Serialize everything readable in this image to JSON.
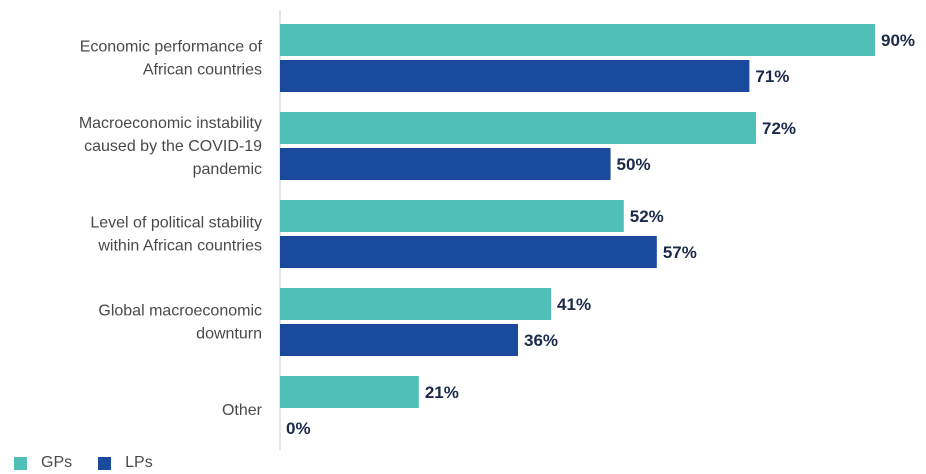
{
  "chart_data": {
    "type": "bar",
    "orientation": "horizontal",
    "categories": [
      [
        "Economic performance of",
        "African countries"
      ],
      [
        "Macroeconomic instability",
        "caused by the COVID-19",
        "pandemic"
      ],
      [
        "Level of political stability",
        "within African countries"
      ],
      [
        "Global macroeconomic",
        "downturn"
      ],
      [
        "Other"
      ]
    ],
    "series": [
      {
        "name": "GPs",
        "color": "#4fbfb7",
        "values": [
          90,
          72,
          52,
          41,
          21
        ]
      },
      {
        "name": "LPs",
        "color": "#1a4a9b",
        "values": [
          71,
          50,
          57,
          36,
          0
        ]
      }
    ],
    "value_suffix": "%",
    "xlim": [
      0,
      100
    ],
    "legend_position": "bottom-left",
    "grid": false
  }
}
